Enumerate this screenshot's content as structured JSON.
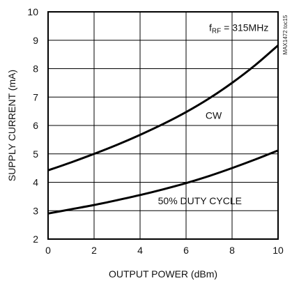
{
  "chart_data": {
    "type": "line",
    "title": "",
    "xlabel": "OUTPUT POWER (dBm)",
    "ylabel": "SUPPLY CURRENT (mA)",
    "xlim": [
      0,
      10
    ],
    "ylim": [
      2,
      10
    ],
    "x_ticks": [
      "0",
      "2",
      "4",
      "6",
      "8",
      "10"
    ],
    "y_ticks": [
      "2",
      "3",
      "4",
      "5",
      "6",
      "7",
      "8",
      "9",
      "10"
    ],
    "grid": true,
    "series": [
      {
        "name": "CW",
        "x": [
          0,
          1,
          2,
          3,
          4,
          5,
          6,
          7,
          8,
          9,
          10
        ],
        "y": [
          4.42,
          4.7,
          5.0,
          5.32,
          5.67,
          6.05,
          6.47,
          6.95,
          7.5,
          8.12,
          8.82
        ]
      },
      {
        "name": "50% DUTY CYCLE",
        "x": [
          0,
          1,
          2,
          3,
          4,
          5,
          6,
          7,
          8,
          9,
          10
        ],
        "y": [
          2.9,
          3.05,
          3.2,
          3.37,
          3.55,
          3.75,
          3.97,
          4.22,
          4.5,
          4.8,
          5.12
        ]
      }
    ],
    "annotations": {
      "condition_main": "f",
      "condition_sub": "RF",
      "condition_value": " = 315MHz",
      "label_cw": "CW",
      "label_duty": "50% DUTY CYCLE"
    },
    "watermark": "MAX1472 toc15"
  }
}
